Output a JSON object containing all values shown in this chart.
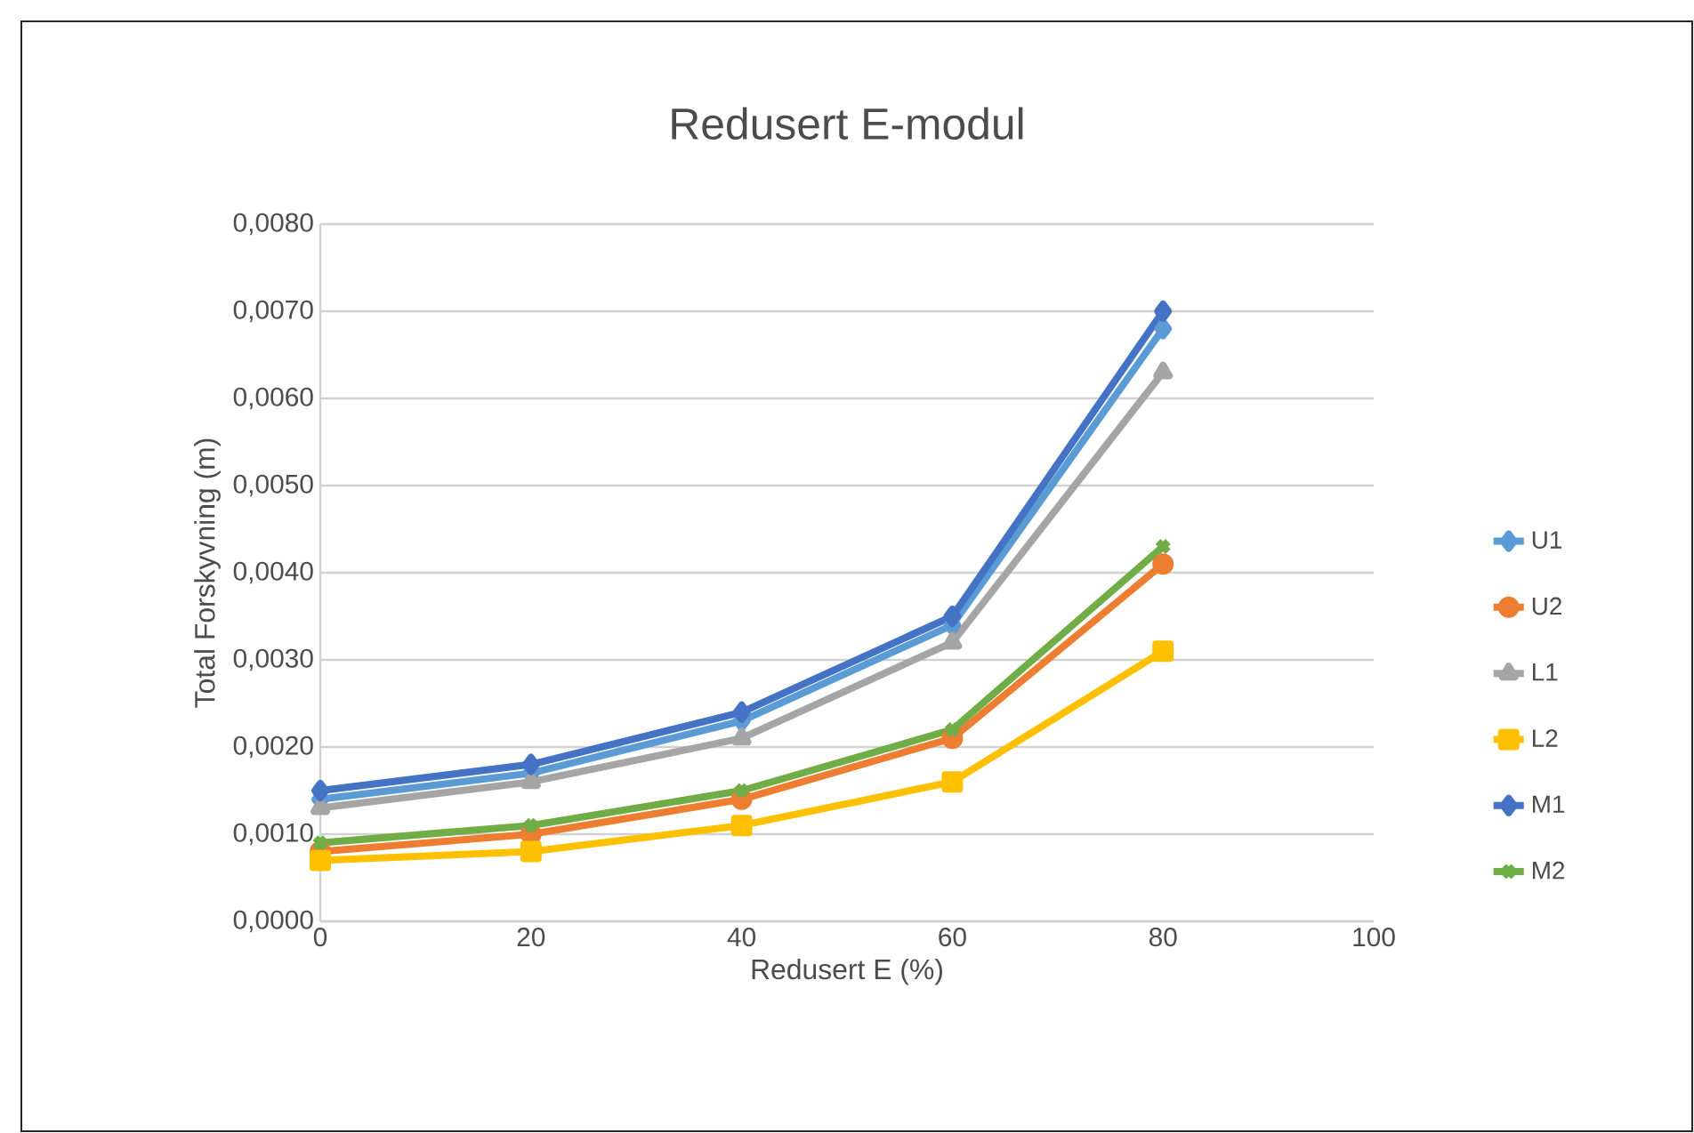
{
  "chart_data": {
    "type": "line",
    "title": "Redusert E-modul",
    "xlabel": "Redusert E (%)",
    "ylabel": "Total Forskyvning (m)",
    "xlim": [
      0,
      100
    ],
    "xticks": [
      0,
      20,
      40,
      60,
      80,
      100
    ],
    "ylim": [
      0,
      0.008
    ],
    "yticks": [
      {
        "value": 0,
        "label": "0,0000"
      },
      {
        "value": 0.001,
        "label": "0,0010"
      },
      {
        "value": 0.002,
        "label": "0,0020"
      },
      {
        "value": 0.003,
        "label": "0,0030"
      },
      {
        "value": 0.004,
        "label": "0,0040"
      },
      {
        "value": 0.005,
        "label": "0,0050"
      },
      {
        "value": 0.006,
        "label": "0,0060"
      },
      {
        "value": 0.007,
        "label": "0,0070"
      },
      {
        "value": 0.008,
        "label": "0,0080"
      }
    ],
    "grid": "y",
    "legend": "right",
    "line_style": "solid",
    "x": [
      0,
      20,
      40,
      60,
      80
    ],
    "series": [
      {
        "name": "U1",
        "color": "#5b9bd5",
        "marker": "diamond",
        "values": [
          0.0014,
          0.0017,
          0.0023,
          0.0034,
          0.0068
        ]
      },
      {
        "name": "U2",
        "color": "#ed7d31",
        "marker": "circle",
        "values": [
          0.0008,
          0.001,
          0.0014,
          0.0021,
          0.0041
        ]
      },
      {
        "name": "L1",
        "color": "#a5a5a5",
        "marker": "triangle",
        "values": [
          0.0013,
          0.0016,
          0.0021,
          0.0032,
          0.0063
        ]
      },
      {
        "name": "L2",
        "color": "#ffc000",
        "marker": "square",
        "values": [
          0.0007,
          0.0008,
          0.0011,
          0.0016,
          0.0031
        ]
      },
      {
        "name": "M1",
        "color": "#4472c4",
        "marker": "diamond",
        "values": [
          0.0015,
          0.0018,
          0.0024,
          0.0035,
          0.007
        ]
      },
      {
        "name": "M2",
        "color": "#70ad47",
        "marker": "cross",
        "values": [
          0.0009,
          0.0011,
          0.0015,
          0.0022,
          0.0043
        ]
      }
    ]
  }
}
